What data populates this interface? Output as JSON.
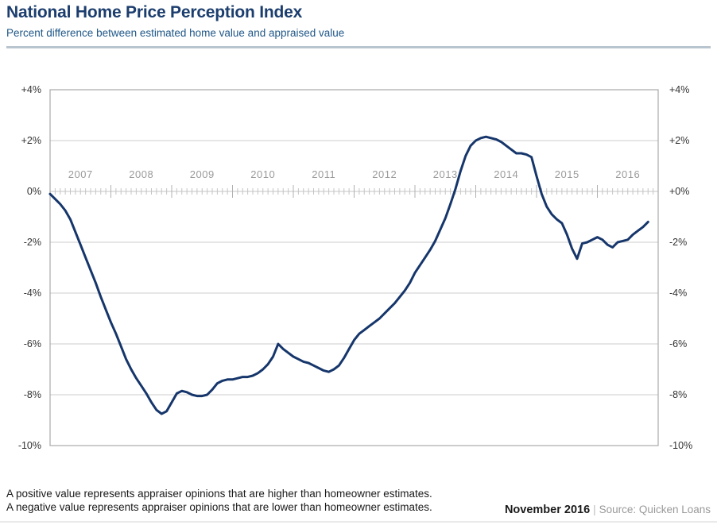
{
  "header": {
    "title": "National Home Price Perception Index",
    "subtitle": "Percent difference between estimated home value and appraised value"
  },
  "footer": {
    "note_line1": "A positive value represents appraiser opinions that are higher than homeowner estimates.",
    "note_line2": "A negative value represents appraiser opinions that are lower than homeowner estimates.",
    "date_label": "November 2016",
    "separator": "|",
    "source_label": "Source: Quicken Loans"
  },
  "colors": {
    "title_navy": "#1c3e6e",
    "subtitle_blue": "#1e5687",
    "line_navy": "#16366b",
    "grid_gray": "#cccccc",
    "border_gray": "#a9a9a9",
    "tick_gray": "#c4c4c4",
    "year_tick_gray": "#b0b0b0",
    "year_label_gray": "#9b9b9b",
    "divider_bluegray": "#b9c5ce",
    "text_dark": "#1a1a1a",
    "muted_gray": "#999999"
  },
  "chart_data": {
    "type": "line",
    "title": "National Home Price Perception Index",
    "subtitle": "Percent difference between estimated home value and appraised value",
    "xlabel": "",
    "ylabel": "Percent difference",
    "grid": true,
    "ylim": [
      -10,
      4
    ],
    "y_tick_values": [
      4,
      2,
      0,
      -2,
      -4,
      -6,
      -8,
      -10
    ],
    "y_axis_left_labels": [
      "+4%",
      "+2%",
      "0%",
      "-2%",
      "-4%",
      "-6%",
      "-8%",
      "-10%"
    ],
    "y_axis_right_labels": [
      "+4%",
      "+2%",
      "+0%",
      "-2%",
      "-4%",
      "-6%",
      "-8%",
      "-10%"
    ],
    "x_year_labels": [
      "2007",
      "2008",
      "2009",
      "2010",
      "2011",
      "2012",
      "2013",
      "2014",
      "2015",
      "2016"
    ],
    "x_start_month": "2007-01",
    "x_end_month": "2016-11",
    "x_total_year_slots": 10,
    "series": [
      {
        "name": "Percent difference between estimated home value and appraised value",
        "monthly_values": [
          -0.1,
          -0.3,
          -0.5,
          -0.75,
          -1.1,
          -1.6,
          -2.1,
          -2.6,
          -3.1,
          -3.6,
          -4.15,
          -4.65,
          -5.15,
          -5.6,
          -6.1,
          -6.6,
          -7.0,
          -7.35,
          -7.65,
          -7.95,
          -8.3,
          -8.6,
          -8.75,
          -8.65,
          -8.3,
          -7.95,
          -7.85,
          -7.9,
          -8.0,
          -8.05,
          -8.05,
          -8.0,
          -7.8,
          -7.55,
          -7.45,
          -7.4,
          -7.4,
          -7.35,
          -7.3,
          -7.3,
          -7.25,
          -7.15,
          -7.0,
          -6.8,
          -6.5,
          -6.0,
          -6.2,
          -6.35,
          -6.5,
          -6.6,
          -6.7,
          -6.75,
          -6.85,
          -6.95,
          -7.05,
          -7.1,
          -7.0,
          -6.85,
          -6.55,
          -6.2,
          -5.85,
          -5.6,
          -5.45,
          -5.3,
          -5.15,
          -5.0,
          -4.8,
          -4.6,
          -4.4,
          -4.15,
          -3.9,
          -3.6,
          -3.2,
          -2.9,
          -2.6,
          -2.3,
          -1.95,
          -1.5,
          -1.05,
          -0.5,
          0.1,
          0.8,
          1.4,
          1.8,
          2.0,
          2.1,
          2.15,
          2.1,
          2.05,
          1.95,
          1.8,
          1.65,
          1.5,
          1.5,
          1.45,
          1.35,
          0.6,
          -0.1,
          -0.6,
          -0.9,
          -1.1,
          -1.25,
          -1.7,
          -2.25,
          -2.65,
          -2.05,
          -2.0,
          -1.9,
          -1.8,
          -1.9,
          -2.1,
          -2.2,
          -2.0,
          -1.95,
          -1.9,
          -1.7,
          -1.55,
          -1.4,
          -1.2
        ]
      }
    ],
    "legend": []
  }
}
